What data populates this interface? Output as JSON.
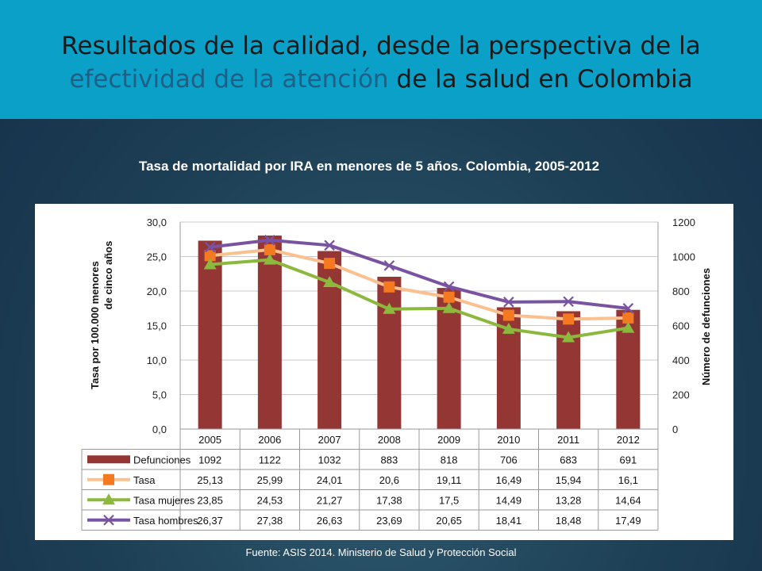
{
  "header": {
    "line1": "Resultados de la calidad, desde la perspectiva de la",
    "line2_highlight": "efectividad de la atención",
    "line2_rest": " de la salud en Colombia"
  },
  "subtitle": "Tasa de mortalidad por IRA en menores de 5 años. Colombia, 2005-2012",
  "source": "Fuente: ASIS 2014. Ministerio de Salud y Protección Social",
  "chart_data": {
    "type": "bar",
    "categories": [
      "2005",
      "2006",
      "2007",
      "2008",
      "2009",
      "2010",
      "2011",
      "2012"
    ],
    "ylabel_left_line1": "Tasa por 100.000 menores",
    "ylabel_left_line2": "de cinco años",
    "ylabel_right": "Número de defunciones",
    "left_ticks": [
      "0,0",
      "5,0",
      "10,0",
      "15,0",
      "20,0",
      "25,0",
      "30,0"
    ],
    "right_ticks": [
      "0",
      "200",
      "400",
      "600",
      "800",
      "1000",
      "1200"
    ],
    "ylim_left": [
      0,
      30
    ],
    "ylim_right": [
      0,
      1200
    ],
    "grid": true,
    "series": [
      {
        "name": "Defunciones",
        "kind": "bar",
        "axis": "right",
        "color": "#943634",
        "values": [
          1092,
          1122,
          1032,
          883,
          818,
          706,
          683,
          691
        ],
        "labels": [
          "1092",
          "1122",
          "1032",
          "883",
          "818",
          "706",
          "683",
          "691"
        ]
      },
      {
        "name": "Tasa",
        "kind": "line",
        "axis": "left",
        "color": "#fac090",
        "marker": "square",
        "marker_color": "#f47920",
        "values": [
          25.13,
          25.99,
          24.01,
          20.6,
          19.11,
          16.49,
          15.94,
          16.1
        ],
        "labels": [
          "25,13",
          "25,99",
          "24,01",
          "20,6",
          "19,11",
          "16,49",
          "15,94",
          "16,1"
        ]
      },
      {
        "name": "Tasa mujeres",
        "kind": "line",
        "axis": "left",
        "color": "#8cb83e",
        "marker": "triangle",
        "marker_color": "#8cb83e",
        "values": [
          23.85,
          24.53,
          21.27,
          17.38,
          17.5,
          14.49,
          13.28,
          14.64
        ],
        "labels": [
          "23,85",
          "24,53",
          "21,27",
          "17,38",
          "17,5",
          "14,49",
          "13,28",
          "14,64"
        ]
      },
      {
        "name": "Tasa hombres",
        "kind": "line",
        "axis": "left",
        "color": "#7953a1",
        "marker": "x",
        "marker_color": "#7953a1",
        "values": [
          26.37,
          27.38,
          26.63,
          23.69,
          20.65,
          18.41,
          18.48,
          17.49
        ],
        "labels": [
          "26,37",
          "27,38",
          "26,63",
          "23,69",
          "20,65",
          "18,41",
          "18,48",
          "17,49"
        ]
      }
    ]
  }
}
